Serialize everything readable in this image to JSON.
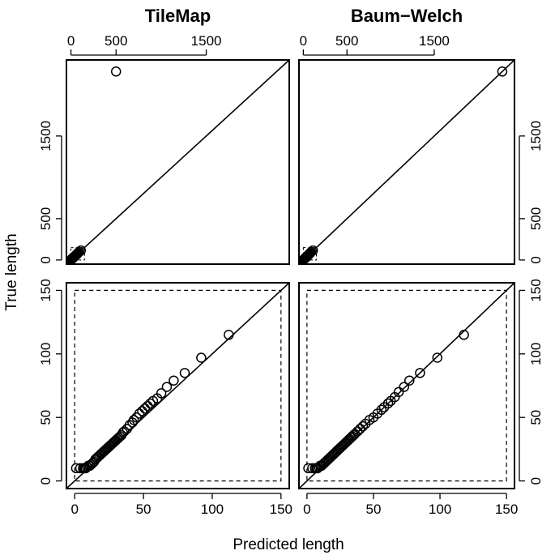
{
  "chart_data": [
    {
      "type": "scatter",
      "panel": "top-left",
      "title": "TileMap",
      "xlim": [
        -50,
        2420
      ],
      "ylim": [
        -50,
        2420
      ],
      "xticks": [
        0,
        500,
        1500
      ],
      "xtick_labels": [
        "0",
        "500",
        "1500"
      ],
      "yticks": [
        0,
        500,
        1500
      ],
      "ytick_labels": [
        "0",
        "500",
        "1500"
      ],
      "xaxis_side": "top",
      "yaxis_side": "left",
      "diagonal": true,
      "inset_box": [
        0,
        150
      ],
      "points": [
        [
          500,
          2280
        ],
        [
          8,
          10
        ],
        [
          10,
          12
        ],
        [
          12,
          14
        ],
        [
          15,
          17
        ],
        [
          18,
          20
        ],
        [
          20,
          22
        ],
        [
          25,
          27
        ],
        [
          28,
          30
        ],
        [
          32,
          35
        ],
        [
          36,
          38
        ],
        [
          40,
          44
        ],
        [
          45,
          48
        ],
        [
          50,
          52
        ],
        [
          55,
          58
        ],
        [
          60,
          64
        ],
        [
          65,
          68
        ],
        [
          70,
          75
        ],
        [
          80,
          85
        ],
        [
          90,
          97
        ],
        [
          110,
          115
        ]
      ]
    },
    {
      "type": "scatter",
      "panel": "top-right",
      "title": "Baum−Welch",
      "xlim": [
        -50,
        2420
      ],
      "ylim": [
        -50,
        2420
      ],
      "xticks": [
        0,
        500,
        1500
      ],
      "xtick_labels": [
        "0",
        "500",
        "1500"
      ],
      "yticks": [
        0,
        500,
        1500
      ],
      "ytick_labels": [
        "0",
        "500",
        "1500"
      ],
      "xaxis_side": "top",
      "yaxis_side": "right",
      "diagonal": true,
      "inset_box": [
        0,
        150
      ],
      "points": [
        [
          2280,
          2280
        ],
        [
          8,
          10
        ],
        [
          10,
          12
        ],
        [
          12,
          14
        ],
        [
          15,
          17
        ],
        [
          18,
          20
        ],
        [
          20,
          22
        ],
        [
          25,
          27
        ],
        [
          28,
          30
        ],
        [
          32,
          35
        ],
        [
          36,
          38
        ],
        [
          40,
          44
        ],
        [
          45,
          48
        ],
        [
          50,
          52
        ],
        [
          55,
          58
        ],
        [
          60,
          64
        ],
        [
          65,
          68
        ],
        [
          70,
          75
        ],
        [
          80,
          85
        ],
        [
          90,
          97
        ],
        [
          110,
          115
        ]
      ]
    },
    {
      "type": "scatter",
      "panel": "bottom-left",
      "xlim": [
        -6,
        156
      ],
      "ylim": [
        -6,
        156
      ],
      "xticks": [
        0,
        50,
        100,
        150
      ],
      "xtick_labels": [
        "0",
        "50",
        "100",
        "150"
      ],
      "yticks": [
        0,
        50,
        100,
        150
      ],
      "ytick_labels": [
        "0",
        "50",
        "100",
        "150"
      ],
      "xaxis_side": "bottom",
      "yaxis_side": "left",
      "diagonal": true,
      "dashed_box": [
        0,
        150
      ],
      "points": [
        [
          1,
          10
        ],
        [
          4,
          10
        ],
        [
          6,
          10
        ],
        [
          7,
          10
        ],
        [
          8,
          10
        ],
        [
          9,
          11
        ],
        [
          10,
          12
        ],
        [
          11,
          12
        ],
        [
          12,
          13
        ],
        [
          13,
          14
        ],
        [
          14,
          15
        ],
        [
          15,
          17
        ],
        [
          16,
          18
        ],
        [
          17,
          19
        ],
        [
          18,
          20
        ],
        [
          19,
          21
        ],
        [
          20,
          22
        ],
        [
          21,
          23
        ],
        [
          22,
          24
        ],
        [
          23,
          25
        ],
        [
          24,
          26
        ],
        [
          25,
          27
        ],
        [
          26,
          28
        ],
        [
          27,
          29
        ],
        [
          28,
          30
        ],
        [
          29,
          31
        ],
        [
          30,
          32
        ],
        [
          31,
          33
        ],
        [
          32,
          34
        ],
        [
          33,
          35
        ],
        [
          34,
          36
        ],
        [
          35,
          38
        ],
        [
          36,
          39
        ],
        [
          38,
          41
        ],
        [
          40,
          44
        ],
        [
          42,
          46
        ],
        [
          43,
          48
        ],
        [
          45,
          50
        ],
        [
          47,
          53
        ],
        [
          49,
          55
        ],
        [
          51,
          57
        ],
        [
          53,
          59
        ],
        [
          55,
          61
        ],
        [
          57,
          63
        ],
        [
          60,
          65
        ],
        [
          63,
          69
        ],
        [
          67,
          74
        ],
        [
          72,
          79
        ],
        [
          80,
          85
        ],
        [
          92,
          97
        ],
        [
          112,
          115
        ]
      ]
    },
    {
      "type": "scatter",
      "panel": "bottom-right",
      "xlim": [
        -6,
        156
      ],
      "ylim": [
        -6,
        156
      ],
      "xticks": [
        0,
        50,
        100,
        150
      ],
      "xtick_labels": [
        "0",
        "50",
        "100",
        "150"
      ],
      "yticks": [
        0,
        50,
        100,
        150
      ],
      "ytick_labels": [
        "0",
        "50",
        "100",
        "150"
      ],
      "xaxis_side": "bottom",
      "yaxis_side": "right",
      "diagonal": true,
      "dashed_box": [
        0,
        150
      ],
      "points": [
        [
          1,
          10
        ],
        [
          4,
          10
        ],
        [
          6,
          10
        ],
        [
          7,
          10
        ],
        [
          8,
          10
        ],
        [
          9,
          11
        ],
        [
          10,
          12
        ],
        [
          11,
          12
        ],
        [
          12,
          13
        ],
        [
          13,
          14
        ],
        [
          14,
          15
        ],
        [
          15,
          16
        ],
        [
          16,
          17
        ],
        [
          17,
          18
        ],
        [
          18,
          19
        ],
        [
          19,
          20
        ],
        [
          20,
          21
        ],
        [
          21,
          22
        ],
        [
          22,
          23
        ],
        [
          23,
          24
        ],
        [
          24,
          25
        ],
        [
          25,
          26
        ],
        [
          26,
          27
        ],
        [
          27,
          28
        ],
        [
          28,
          29
        ],
        [
          29,
          30
        ],
        [
          30,
          31
        ],
        [
          31,
          32
        ],
        [
          32,
          33
        ],
        [
          33,
          34
        ],
        [
          34,
          35
        ],
        [
          35,
          36
        ],
        [
          36,
          37
        ],
        [
          38,
          39
        ],
        [
          40,
          41
        ],
        [
          42,
          43
        ],
        [
          44,
          45
        ],
        [
          47,
          48
        ],
        [
          50,
          50
        ],
        [
          53,
          53
        ],
        [
          56,
          56
        ],
        [
          58,
          58
        ],
        [
          61,
          61
        ],
        [
          63,
          63
        ],
        [
          66,
          66
        ],
        [
          69,
          70
        ],
        [
          73,
          74
        ],
        [
          77,
          79
        ],
        [
          85,
          85
        ],
        [
          98,
          97
        ],
        [
          118,
          115
        ]
      ]
    }
  ],
  "xlabel": "Predicted length",
  "ylabel": "True length"
}
